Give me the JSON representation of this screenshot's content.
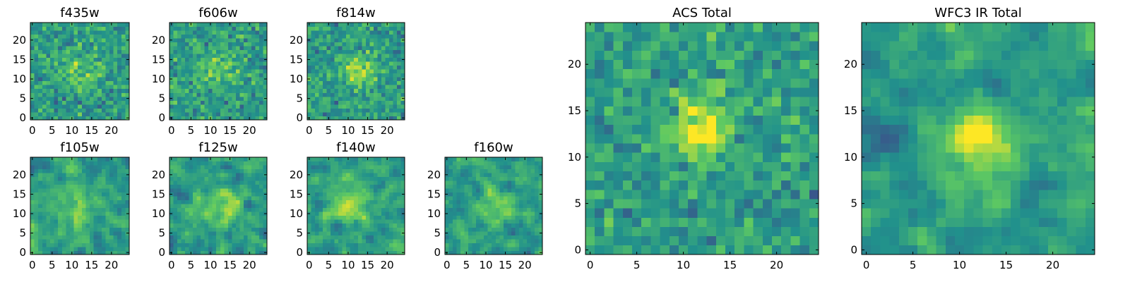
{
  "chart_data": [
    {
      "type": "heatmap",
      "title": "f435w",
      "colormap": "viridis",
      "x_ticks": [
        "0",
        "5",
        "10",
        "15",
        "20"
      ],
      "y_ticks": [
        "0",
        "5",
        "10",
        "15",
        "20"
      ],
      "xlim": [
        -0.5,
        24.5
      ],
      "ylim": [
        -0.5,
        24.5
      ],
      "grid_size": [
        25,
        25
      ],
      "peak": [
        12,
        12
      ],
      "seed": 11,
      "blob_width": 3.5,
      "blob_strength": 0.18,
      "noise_level": 1.0,
      "contrast": 0.55,
      "smoothing": 0
    },
    {
      "type": "heatmap",
      "title": "f606w",
      "colormap": "viridis",
      "x_ticks": [
        "0",
        "5",
        "10",
        "15",
        "20"
      ],
      "y_ticks": [
        "0",
        "5",
        "10",
        "15",
        "20"
      ],
      "xlim": [
        -0.5,
        24.5
      ],
      "ylim": [
        -0.5,
        24.5
      ],
      "grid_size": [
        25,
        25
      ],
      "peak": [
        12,
        13
      ],
      "seed": 23,
      "blob_width": 3.5,
      "blob_strength": 0.22,
      "noise_level": 1.0,
      "contrast": 0.55,
      "smoothing": 0
    },
    {
      "type": "heatmap",
      "title": "f814w",
      "colormap": "viridis",
      "x_ticks": [
        "0",
        "5",
        "10",
        "15",
        "20"
      ],
      "y_ticks": [
        "0",
        "5",
        "10",
        "15",
        "20"
      ],
      "xlim": [
        -0.5,
        24.5
      ],
      "ylim": [
        -0.5,
        24.5
      ],
      "grid_size": [
        25,
        25
      ],
      "peak": [
        13,
        12
      ],
      "seed": 37,
      "blob_width": 3.0,
      "blob_strength": 0.28,
      "noise_level": 1.0,
      "contrast": 0.55,
      "smoothing": 0
    },
    {
      "type": "heatmap",
      "title": "f105w",
      "colormap": "viridis",
      "x_ticks": [
        "0",
        "5",
        "10",
        "15",
        "20"
      ],
      "y_ticks": [
        "0",
        "5",
        "10",
        "15",
        "20"
      ],
      "xlim": [
        -0.5,
        24.5
      ],
      "ylim": [
        -0.5,
        24.5
      ],
      "grid_size": [
        25,
        25
      ],
      "peak": [
        12,
        12
      ],
      "seed": 41,
      "blob_width": 4.0,
      "blob_strength": 0.22,
      "noise_level": 1.0,
      "contrast": 0.65,
      "smoothing": 1
    },
    {
      "type": "heatmap",
      "title": "f125w",
      "colormap": "viridis",
      "x_ticks": [
        "0",
        "5",
        "10",
        "15",
        "20"
      ],
      "y_ticks": [
        "0",
        "5",
        "10",
        "15",
        "20"
      ],
      "xlim": [
        -0.5,
        24.5
      ],
      "ylim": [
        -0.5,
        24.5
      ],
      "grid_size": [
        25,
        25
      ],
      "peak": [
        13,
        12
      ],
      "seed": 53,
      "blob_width": 3.5,
      "blob_strength": 0.25,
      "noise_level": 1.0,
      "contrast": 0.65,
      "smoothing": 1
    },
    {
      "type": "heatmap",
      "title": "f140w",
      "colormap": "viridis",
      "x_ticks": [
        "0",
        "5",
        "10",
        "15",
        "20"
      ],
      "y_ticks": [
        "0",
        "5",
        "10",
        "15",
        "20"
      ],
      "xlim": [
        -0.5,
        24.5
      ],
      "ylim": [
        -0.5,
        24.5
      ],
      "grid_size": [
        25,
        25
      ],
      "peak": [
        11,
        12
      ],
      "seed": 67,
      "blob_width": 3.5,
      "blob_strength": 0.3,
      "noise_level": 1.0,
      "contrast": 0.65,
      "smoothing": 1
    },
    {
      "type": "heatmap",
      "title": "f160w",
      "colormap": "viridis",
      "x_ticks": [
        "0",
        "5",
        "10",
        "15",
        "20"
      ],
      "y_ticks": [
        "0",
        "5",
        "10",
        "15",
        "20"
      ],
      "xlim": [
        -0.5,
        24.5
      ],
      "ylim": [
        -0.5,
        24.5
      ],
      "grid_size": [
        25,
        25
      ],
      "peak": [
        13,
        12
      ],
      "seed": 79,
      "blob_width": 2.5,
      "blob_strength": 0.35,
      "noise_level": 1.0,
      "contrast": 0.65,
      "smoothing": 1
    },
    {
      "type": "heatmap",
      "title": "ACS Total",
      "colormap": "viridis",
      "x_ticks": [
        "0",
        "5",
        "10",
        "15",
        "20"
      ],
      "y_ticks": [
        "0",
        "5",
        "10",
        "15",
        "20"
      ],
      "xlim": [
        -0.5,
        24.5
      ],
      "ylim": [
        -0.5,
        24.5
      ],
      "grid_size": [
        25,
        25
      ],
      "peak": [
        12,
        13
      ],
      "seed": 97,
      "blob_width": 2.5,
      "blob_strength": 0.45,
      "noise_level": 1.0,
      "contrast": 0.5,
      "smoothing": 0
    },
    {
      "type": "heatmap",
      "title": "WFC3 IR Total",
      "colormap": "viridis",
      "x_ticks": [
        "0",
        "5",
        "10",
        "15",
        "20"
      ],
      "y_ticks": [
        "0",
        "5",
        "10",
        "15",
        "20"
      ],
      "xlim": [
        -0.5,
        24.5
      ],
      "ylim": [
        -0.5,
        24.5
      ],
      "grid_size": [
        25,
        25
      ],
      "peak": [
        12,
        12
      ],
      "seed": 131,
      "blob_width": 2.5,
      "blob_strength": 0.5,
      "noise_level": 1.0,
      "contrast": 0.6,
      "smoothing": 1
    }
  ],
  "colors": {
    "colormap_stops": [
      "#440154",
      "#3b528b",
      "#21918c",
      "#5ec962",
      "#fde725"
    ],
    "axis": "#000000",
    "background": "#ffffff"
  }
}
